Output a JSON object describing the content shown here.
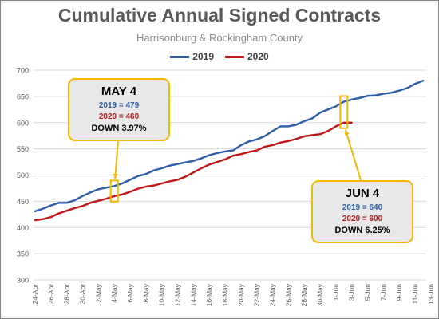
{
  "chart_data": {
    "type": "line",
    "title": "Cumulative Annual Signed Contracts",
    "subtitle": "Harrisonburg & Rockingham County",
    "ylim": [
      300,
      700
    ],
    "yticks": [
      300,
      350,
      400,
      450,
      500,
      550,
      600,
      650,
      700
    ],
    "xlabels": [
      "24-Apr",
      "26-Apr",
      "28-Apr",
      "30-Apr",
      "2-May",
      "4-May",
      "6-May",
      "8-May",
      "10-May",
      "12-May",
      "14-May",
      "16-May",
      "18-May",
      "20-May",
      "22-May",
      "24-May",
      "26-May",
      "28-May",
      "30-May",
      "1-Jun",
      "3-Jun",
      "5-Jun",
      "7-Jun",
      "9-Jun",
      "11-Jun",
      "13-Jun"
    ],
    "legend_position": "top",
    "grid": true,
    "series": [
      {
        "name": "2019",
        "color": "#2e5ea8",
        "values": [
          431,
          436,
          442,
          447,
          447,
          452,
          460,
          467,
          473,
          476,
          479,
          484,
          491,
          498,
          502,
          509,
          513,
          518,
          521,
          524,
          527,
          532,
          538,
          542,
          545,
          547,
          557,
          564,
          568,
          574,
          584,
          593,
          593,
          596,
          603,
          608,
          619,
          625,
          631,
          640,
          644,
          647,
          651,
          652,
          655,
          657,
          661,
          666,
          674,
          680
        ]
      },
      {
        "name": "2020",
        "color": "#c01818",
        "values": [
          414,
          416,
          420,
          427,
          432,
          437,
          441,
          447,
          451,
          455,
          460,
          463,
          468,
          474,
          478,
          480,
          484,
          488,
          491,
          497,
          505,
          513,
          520,
          525,
          530,
          537,
          540,
          544,
          547,
          554,
          557,
          562,
          565,
          569,
          574,
          576,
          578,
          584,
          593,
          600,
          600
        ]
      }
    ]
  },
  "callouts": {
    "may": {
      "date": "MAY 4",
      "line_2019": "2019 = 479",
      "line_2020": "2020 = 460",
      "change": "DOWN 3.97%"
    },
    "jun": {
      "date": "JUN 4",
      "line_2019": "2019 = 640",
      "line_2020": "2020 = 600",
      "change": "DOWN 6.25%"
    }
  },
  "colors": {
    "callout_border": "#f5b800",
    "callout_bg": "#e8e8e8",
    "grid": "#d9d9d9",
    "axis_text": "#595959"
  }
}
